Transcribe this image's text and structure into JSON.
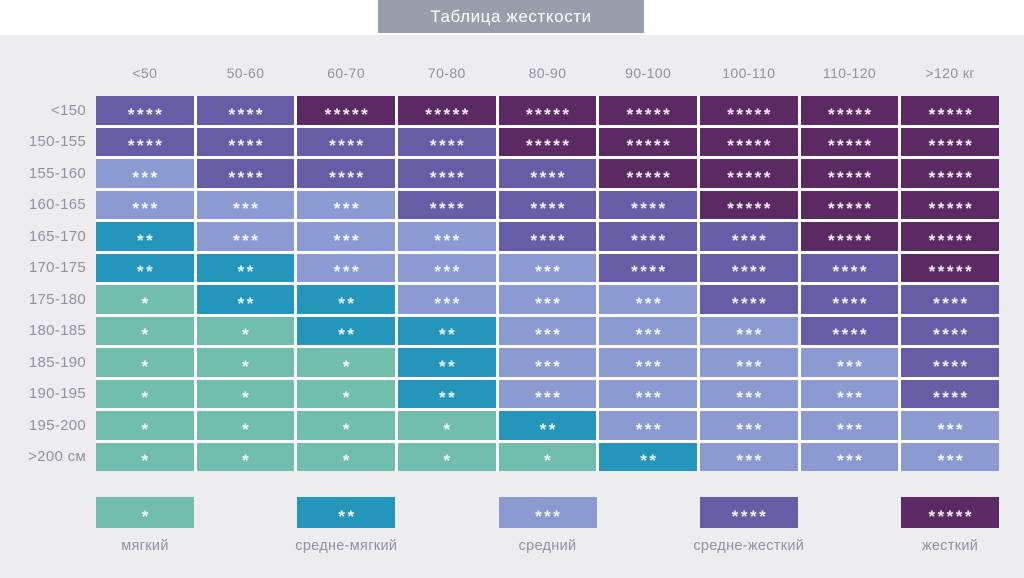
{
  "title": "Таблица жесткости",
  "chart_data": {
    "type": "heatmap",
    "title": "Таблица жесткости",
    "x_categories": [
      "<50",
      "50-60",
      "60-70",
      "70-80",
      "80-90",
      "90-100",
      "100-110",
      "110-120",
      ">120 кг"
    ],
    "y_categories": [
      "<150",
      "150-155",
      "155-160",
      "160-165",
      "165-170",
      "170-175",
      "175-180",
      "180-185",
      "185-190",
      "190-195",
      "195-200",
      ">200 см"
    ],
    "values": [
      [
        4,
        4,
        5,
        5,
        5,
        5,
        5,
        5,
        5
      ],
      [
        4,
        4,
        4,
        4,
        5,
        5,
        5,
        5,
        5
      ],
      [
        3,
        4,
        4,
        4,
        4,
        5,
        5,
        5,
        5
      ],
      [
        3,
        3,
        3,
        4,
        4,
        4,
        5,
        5,
        5
      ],
      [
        2,
        3,
        3,
        3,
        4,
        4,
        4,
        5,
        5
      ],
      [
        2,
        2,
        3,
        3,
        3,
        4,
        4,
        4,
        5
      ],
      [
        1,
        2,
        2,
        3,
        3,
        3,
        4,
        4,
        4
      ],
      [
        1,
        1,
        2,
        2,
        3,
        3,
        3,
        4,
        4
      ],
      [
        1,
        1,
        1,
        2,
        3,
        3,
        3,
        3,
        4
      ],
      [
        1,
        1,
        1,
        2,
        3,
        3,
        3,
        3,
        4
      ],
      [
        1,
        1,
        1,
        1,
        2,
        3,
        3,
        3,
        3
      ],
      [
        1,
        1,
        1,
        1,
        1,
        2,
        3,
        3,
        3
      ]
    ],
    "legend": [
      {
        "stars": "*",
        "label": "мягкий",
        "color": "#71BEAC"
      },
      {
        "stars": "**",
        "label": "средне-мягкий",
        "color": "#2496BB"
      },
      {
        "stars": "***",
        "label": "средний",
        "color": "#8C9AD2"
      },
      {
        "stars": "****",
        "label": "средне-жесткий",
        "color": "#675DA7"
      },
      {
        "stars": "*****",
        "label": "жесткий",
        "color": "#5C2A63"
      }
    ],
    "legend_position": "bottom",
    "grid": false
  },
  "colors": {
    "title_bar": "#9A9EAA",
    "panel_background": "#EDEDEF",
    "label_text": "#8F929E",
    "star_text": "#F4F2F8",
    "cell_gap": "#FFFFFF"
  }
}
